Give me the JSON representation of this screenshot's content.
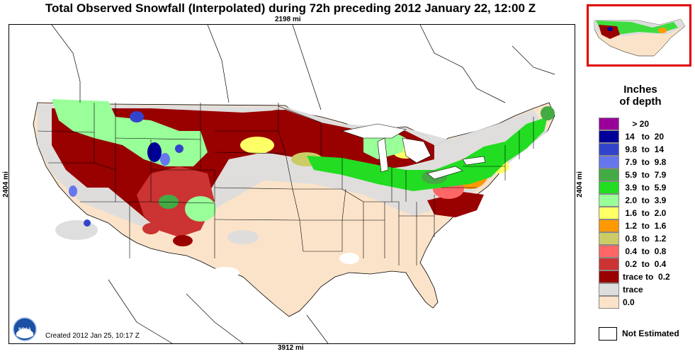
{
  "title": "Total Observed Snowfall (Interpolated) during 72h preceding 2012 January 22, 12:00 Z",
  "dimensions": {
    "top": "2198 mi",
    "bottom": "3912 mi",
    "left": "2404 mi",
    "right": "2404 mi"
  },
  "created": "Created 2012 Jan 25, 10:17 Z",
  "logo_text": "NOAA",
  "legend": {
    "title_line1": "Inches",
    "title_line2": "of depth",
    "items": [
      {
        "label": "    > 20",
        "color": "#990099"
      },
      {
        "label": " 14   to  20",
        "color": "#000099"
      },
      {
        "label": " 9.8  to  14",
        "color": "#3344cc"
      },
      {
        "label": " 7.9  to  9.8",
        "color": "#6677ee"
      },
      {
        "label": " 5.9  to  7.9",
        "color": "#44aa44"
      },
      {
        "label": " 3.9  to  5.9",
        "color": "#22dd22"
      },
      {
        "label": " 2.0  to  3.9",
        "color": "#99ff99"
      },
      {
        "label": " 1.6  to  2.0",
        "color": "#ffff66"
      },
      {
        "label": " 1.2  to  1.6",
        "color": "#ff9900"
      },
      {
        "label": " 0.8  to  1.2",
        "color": "#cccc66"
      },
      {
        "label": " 0.4  to  0.8",
        "color": "#ff6666"
      },
      {
        "label": " 0.2  to  0.4",
        "color": "#cc3333"
      },
      {
        "label": "trace to  0.2",
        "color": "#990000"
      },
      {
        "label": "trace",
        "color": "#dddddd"
      },
      {
        "label": "0.0",
        "color": "#fbe3c9"
      }
    ],
    "not_estimated": "Not Estimated"
  },
  "colors": {
    "inset_border": "#e00000",
    "bare_ground": "#fbe3c9"
  }
}
